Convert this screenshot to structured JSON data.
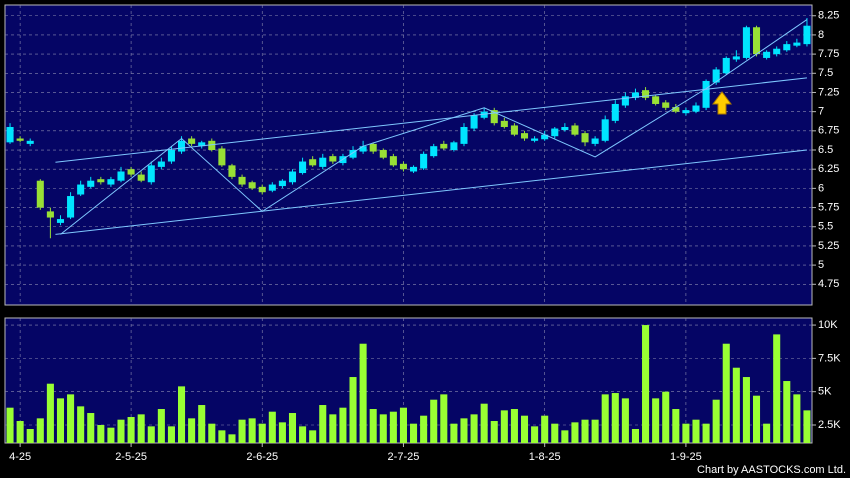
{
  "chart_data": {
    "type": "candlestick",
    "categories": [
      null,
      "4-25",
      null,
      null,
      null,
      null,
      null,
      null,
      null,
      null,
      null,
      null,
      "2-5-25",
      null,
      null,
      null,
      null,
      null,
      null,
      null,
      null,
      null,
      null,
      null,
      null,
      "2-6-25",
      null,
      null,
      null,
      null,
      null,
      null,
      null,
      null,
      null,
      null,
      null,
      null,
      null,
      "2-7-25",
      null,
      null,
      null,
      null,
      null,
      null,
      null,
      null,
      null,
      null,
      null,
      null,
      null,
      "1-8-25",
      null,
      null,
      null,
      null,
      null,
      null,
      null,
      null,
      null,
      null,
      null,
      null,
      null,
      "1-9-25",
      null,
      null,
      null,
      null,
      null,
      null,
      null,
      null,
      null,
      null,
      null,
      null
    ],
    "open": [
      6.6,
      6.65,
      6.58,
      6.1,
      5.7,
      5.55,
      5.62,
      5.92,
      6.02,
      6.12,
      6.05,
      6.1,
      6.25,
      6.18,
      6.08,
      6.28,
      6.35,
      6.48,
      6.65,
      6.55,
      6.62,
      6.52,
      6.3,
      6.15,
      6.08,
      6.02,
      5.97,
      6.03,
      6.08,
      6.2,
      6.38,
      6.28,
      6.42,
      6.33,
      6.4,
      6.48,
      6.58,
      6.5,
      6.42,
      6.32,
      6.22,
      6.26,
      6.42,
      6.58,
      6.5,
      6.58,
      6.78,
      6.92,
      7.02,
      6.88,
      6.82,
      6.72,
      6.62,
      6.64,
      6.68,
      6.76,
      6.82,
      6.72,
      6.58,
      6.62,
      6.88,
      7.08,
      7.18,
      7.28,
      7.2,
      7.12,
      7.06,
      6.98,
      7.0,
      7.05,
      7.38,
      7.5,
      7.68,
      7.7,
      8.1,
      7.7,
      7.75,
      7.8,
      7.86,
      7.88
    ],
    "high": [
      6.85,
      6.68,
      6.65,
      6.12,
      5.75,
      5.65,
      5.95,
      6.1,
      6.15,
      6.15,
      6.15,
      6.28,
      6.28,
      6.22,
      6.35,
      6.4,
      6.55,
      6.68,
      6.68,
      6.62,
      6.65,
      6.55,
      6.32,
      6.18,
      6.1,
      6.05,
      6.08,
      6.12,
      6.25,
      6.4,
      6.42,
      6.45,
      6.45,
      6.45,
      6.55,
      6.62,
      6.6,
      6.52,
      6.45,
      6.35,
      6.3,
      6.48,
      6.58,
      6.62,
      6.62,
      6.85,
      6.98,
      7.05,
      7.05,
      6.92,
      6.85,
      6.75,
      6.68,
      6.75,
      6.8,
      6.85,
      6.85,
      6.75,
      6.68,
      6.95,
      7.15,
      7.25,
      7.3,
      7.32,
      7.22,
      7.15,
      7.1,
      7.05,
      7.12,
      7.42,
      7.58,
      7.72,
      7.8,
      8.12,
      8.12,
      7.8,
      7.85,
      7.92,
      7.95,
      8.22
    ],
    "low": [
      6.58,
      6.6,
      6.55,
      5.72,
      5.35,
      5.52,
      5.6,
      5.9,
      6.0,
      6.05,
      6.02,
      6.08,
      6.15,
      6.08,
      6.05,
      6.25,
      6.32,
      6.45,
      6.55,
      6.52,
      6.48,
      6.28,
      6.12,
      6.02,
      5.98,
      5.92,
      5.95,
      6.0,
      6.05,
      6.18,
      6.28,
      6.25,
      6.32,
      6.3,
      6.38,
      6.45,
      6.45,
      6.38,
      6.28,
      6.22,
      6.2,
      6.24,
      6.4,
      6.5,
      6.48,
      6.55,
      6.75,
      6.9,
      6.82,
      6.78,
      6.68,
      6.62,
      6.6,
      6.62,
      6.65,
      6.74,
      6.68,
      6.55,
      6.55,
      6.6,
      6.85,
      7.05,
      7.15,
      7.15,
      7.08,
      7.02,
      6.98,
      6.95,
      6.98,
      7.02,
      7.35,
      7.48,
      7.65,
      7.68,
      7.72,
      7.68,
      7.72,
      7.78,
      7.84,
      7.85
    ],
    "close": [
      6.8,
      6.62,
      6.62,
      5.75,
      5.62,
      5.6,
      5.9,
      6.05,
      6.1,
      6.08,
      6.12,
      6.22,
      6.18,
      6.1,
      6.3,
      6.35,
      6.5,
      6.62,
      6.58,
      6.6,
      6.5,
      6.3,
      6.15,
      6.05,
      6.0,
      5.95,
      6.05,
      6.1,
      6.22,
      6.35,
      6.3,
      6.4,
      6.35,
      6.42,
      6.5,
      6.55,
      6.48,
      6.4,
      6.3,
      6.25,
      6.28,
      6.45,
      6.55,
      6.52,
      6.6,
      6.8,
      6.95,
      7.0,
      6.85,
      6.8,
      6.7,
      6.65,
      6.65,
      6.7,
      6.78,
      6.8,
      6.7,
      6.6,
      6.65,
      6.9,
      7.1,
      7.2,
      7.25,
      7.18,
      7.1,
      7.05,
      7.0,
      7.02,
      7.08,
      7.4,
      7.55,
      7.7,
      7.72,
      8.1,
      7.75,
      7.78,
      7.82,
      7.88,
      7.9,
      8.12
    ],
    "volume": [
      3800,
      2800,
      2200,
      3000,
      5600,
      4500,
      4800,
      3900,
      3400,
      2500,
      2300,
      2900,
      3100,
      3300,
      2400,
      3700,
      2400,
      5400,
      3000,
      4000,
      2600,
      2100,
      1800,
      2900,
      3000,
      2600,
      3500,
      2700,
      3400,
      2400,
      2100,
      4000,
      3300,
      3800,
      6100,
      8600,
      3700,
      3300,
      3500,
      3800,
      2600,
      3200,
      4400,
      4800,
      2600,
      3000,
      3300,
      4100,
      2800,
      3600,
      3700,
      3200,
      2400,
      3200,
      2600,
      2100,
      2700,
      2900,
      2900,
      4800,
      4900,
      4500,
      2200,
      10000,
      4500,
      5000,
      3700,
      2600,
      2900,
      2600,
      4400,
      8600,
      6800,
      6100,
      4700,
      2600,
      9300,
      5800,
      4800,
      3600
    ],
    "up_color": "#00e5ff",
    "down_color": "#99e035",
    "volume_color": "#99ff33",
    "line_color": "#7fc8ff",
    "ylim": [
      4.48,
      8.39
    ],
    "yticks": [
      4.75,
      5,
      5.25,
      5.5,
      5.75,
      6,
      6.25,
      6.5,
      6.75,
      7,
      7.25,
      7.5,
      7.75,
      8,
      8.25
    ],
    "volume_ylim": [
      1150,
      10530
    ],
    "volume_ticks": [
      {
        "value": 2500,
        "label": "2.5K"
      },
      {
        "value": 5000,
        "label": "5K"
      },
      {
        "value": 7500,
        "label": "7.5K"
      },
      {
        "value": 10000,
        "label": "10K"
      }
    ],
    "grid": true,
    "trend_lines": [
      {
        "points": [
          [
            4.5,
            6.34
          ],
          [
            79,
            7.44
          ]
        ]
      },
      {
        "points": [
          [
            4.5,
            5.4
          ],
          [
            79,
            6.5
          ]
        ]
      },
      {
        "points": [
          [
            5,
            5.4
          ],
          [
            17,
            6.65
          ],
          [
            25,
            5.7
          ],
          [
            35,
            6.55
          ],
          [
            47,
            7.05
          ],
          [
            58,
            6.41
          ],
          [
            69,
            7.3
          ],
          [
            79,
            8.2
          ]
        ]
      }
    ],
    "credit": "Chart by AASTOCKS.com Ltd."
  }
}
